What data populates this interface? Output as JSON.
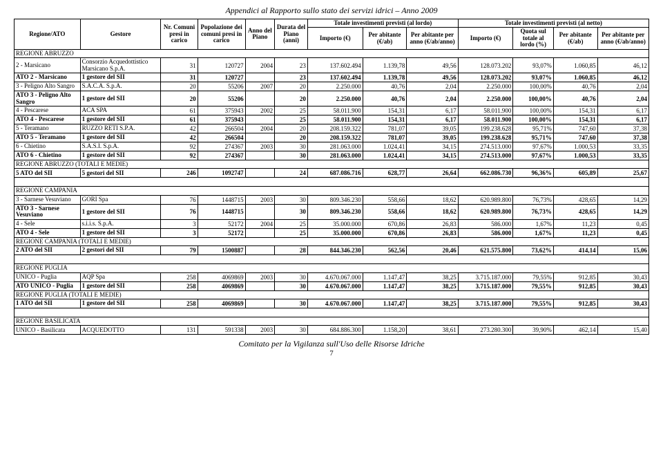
{
  "doc": {
    "title": "Appendici al Rapporto sullo stato dei servizi idrici – Anno 2009",
    "footer": "Comitato per la Vigilanza sull'Uso delle Risorse Idriche",
    "page": "7"
  },
  "headers": {
    "h1": "Regione/ATO",
    "h2": "Gestore",
    "h3": "Nr. Comuni presi in carico",
    "h4": "Popolazione dei comuni presi in carico",
    "h5": "Anno del Piano",
    "h6": "Durata del Piano (anni)",
    "h7": "Totale investimenti previsti (al lordo)",
    "h7a": "Importo (€)",
    "h7b": "Per abitante (€/ab)",
    "h7c": "Per abitante per anno (€/ab/anno)",
    "h8": "Totale investimenti previsti (al netto)",
    "h8a": "Importo (€)",
    "h8b": "Quota sul totale al lordo (%)",
    "h8c": "Per abitante (€/ab)",
    "h8d": "Per abitante per anno (€/ab/anno)"
  },
  "sections": [
    {
      "title": "REGIONE ABRUZZO",
      "rows": [
        {
          "b": false,
          "c": [
            "2 - Marsicano",
            "Consorzio Acquedottistico Marsicano S.p.A.",
            "31",
            "120727",
            "2004",
            "23",
            "137.602.494",
            "1.139,78",
            "49,56",
            "128.073.202",
            "93,07%",
            "1.060,85",
            "46,12"
          ]
        },
        {
          "b": true,
          "c": [
            "ATO 2 - Marsicano",
            "1 gestore del SII",
            "31",
            "120727",
            "",
            "23",
            "137.602.494",
            "1.139,78",
            "49,56",
            "128.073.202",
            "93,07%",
            "1.060,85",
            "46,12"
          ]
        },
        {
          "b": false,
          "c": [
            "3 - Peligno Alto Sangro",
            "S.A.C.A. S.p.A.",
            "20",
            "55206",
            "2007",
            "20",
            "2.250.000",
            "40,76",
            "2,04",
            "2.250.000",
            "100,00%",
            "40,76",
            "2,04"
          ]
        },
        {
          "b": true,
          "c": [
            "ATO 3 - Peligno Alto Sangro",
            "1 gestore del SII",
            "20",
            "55206",
            "",
            "20",
            "2.250.000",
            "40,76",
            "2,04",
            "2.250.000",
            "100,00%",
            "40,76",
            "2,04"
          ]
        },
        {
          "b": false,
          "c": [
            "4 - Pescarese",
            "ACA SPA",
            "61",
            "375943",
            "2002",
            "25",
            "58.011.900",
            "154,31",
            "6,17",
            "58.011.900",
            "100,00%",
            "154,31",
            "6,17"
          ]
        },
        {
          "b": true,
          "c": [
            "ATO 4 - Pescarese",
            "1 gestore del SII",
            "61",
            "375943",
            "",
            "25",
            "58.011.900",
            "154,31",
            "6,17",
            "58.011.900",
            "100,00%",
            "154,31",
            "6,17"
          ]
        },
        {
          "b": false,
          "c": [
            "5 - Teramano",
            "RUZZO RETI S.P.A.",
            "42",
            "266504",
            "2004",
            "20",
            "208.159.322",
            "781,07",
            "39,05",
            "199.238.628",
            "95,71%",
            "747,60",
            "37,38"
          ]
        },
        {
          "b": true,
          "c": [
            "ATO 5 - Teramano",
            "1 gestore del SII",
            "42",
            "266504",
            "",
            "20",
            "208.159.322",
            "781,07",
            "39,05",
            "199.238.628",
            "95,71%",
            "747,60",
            "37,38"
          ]
        },
        {
          "b": false,
          "c": [
            "6 - Chietino",
            "S.A.S.I. S.p.A.",
            "92",
            "274367",
            "2003",
            "30",
            "281.063.000",
            "1.024,41",
            "34,15",
            "274.513.000",
            "97,67%",
            "1.000,53",
            "33,35"
          ]
        },
        {
          "b": true,
          "c": [
            "ATO 6 - Chietino",
            "1 gestore del SII",
            "92",
            "274367",
            "",
            "30",
            "281.063.000",
            "1.024,41",
            "34,15",
            "274.513.000",
            "97,67%",
            "1.000,53",
            "33,35"
          ]
        },
        {
          "b": false,
          "span": true,
          "c": [
            "REGIONE ABRUZZO (TOTALI E MEDIE)"
          ]
        },
        {
          "b": true,
          "c": [
            "5 ATO del SII",
            "5 gestori del SII",
            "246",
            "1092747",
            "",
            "24",
            "687.086.716",
            "628,77",
            "26,64",
            "662.086.730",
            "96,36%",
            "605,89",
            "25,67"
          ]
        }
      ]
    },
    {
      "spacer": true
    },
    {
      "title": "REGIONE CAMPANIA",
      "rows": [
        {
          "b": false,
          "c": [
            "3 - Sarnese Vesuviano",
            "GORI Spa",
            "76",
            "1448715",
            "2003",
            "30",
            "809.346.230",
            "558,66",
            "18,62",
            "620.989.800",
            "76,73%",
            "428,65",
            "14,29"
          ]
        },
        {
          "b": true,
          "c": [
            "ATO 3 - Sarnese Vesuviano",
            "1 gestore del SII",
            "76",
            "1448715",
            "",
            "30",
            "809.346.230",
            "558,66",
            "18,62",
            "620.989.800",
            "76,73%",
            "428,65",
            "14,29"
          ]
        },
        {
          "b": false,
          "c": [
            "4 - Sele",
            "s.i.i.s. S.p.A.",
            "3",
            "52172",
            "2004",
            "25",
            "35.000.000",
            "670,86",
            "26,83",
            "586.000",
            "1,67%",
            "11,23",
            "0,45"
          ]
        },
        {
          "b": true,
          "c": [
            "ATO 4 - Sele",
            "1 gestore del SII",
            "3",
            "52172",
            "",
            "25",
            "35.000.000",
            "670,86",
            "26,83",
            "586.000",
            "1,67%",
            "11,23",
            "0,45"
          ]
        },
        {
          "b": false,
          "span": true,
          "c": [
            "REGIONE CAMPANIA (TOTALI E MEDIE)"
          ]
        },
        {
          "b": true,
          "c": [
            "2 ATO del SII",
            "2 gestori del SII",
            "79",
            "1500887",
            "",
            "28",
            "844.346.230",
            "562,56",
            "20,46",
            "621.575.800",
            "73,62%",
            "414,14",
            "15,06"
          ]
        }
      ]
    },
    {
      "spacer": true
    },
    {
      "title": "REGIONE PUGLIA",
      "rows": [
        {
          "b": false,
          "c": [
            "UNICO - Puglia",
            "AQP Spa",
            "258",
            "4069869",
            "2003",
            "30",
            "4.670.067.000",
            "1.147,47",
            "38,25",
            "3.715.187.000",
            "79,55%",
            "912,85",
            "30,43"
          ]
        },
        {
          "b": true,
          "c": [
            "ATO UNICO - Puglia",
            "1 gestore del SII",
            "258",
            "4069869",
            "",
            "30",
            "4.670.067.000",
            "1.147,47",
            "38,25",
            "3.715.187.000",
            "79,55%",
            "912,85",
            "30,43"
          ]
        },
        {
          "b": false,
          "span": true,
          "c": [
            "REGIONE PUGLIA (TOTALI E MEDIE)"
          ]
        },
        {
          "b": true,
          "c": [
            "1 ATO del SII",
            "1 gestore del SII",
            "258",
            "4069869",
            "",
            "30",
            "4.670.067.000",
            "1.147,47",
            "38,25",
            "3.715.187.000",
            "79,55%",
            "912,85",
            "30,43"
          ]
        }
      ]
    },
    {
      "spacer": true
    },
    {
      "title": "REGIONE BASILICATA",
      "rows": [
        {
          "b": false,
          "c": [
            "UNICO - Basilicata",
            "ACQUEDOTTO",
            "131",
            "591338",
            "2003",
            "30",
            "684.886.300",
            "1.158,20",
            "38,61",
            "273.280.300",
            "39,90%",
            "462,14",
            "15,40"
          ]
        }
      ]
    }
  ]
}
